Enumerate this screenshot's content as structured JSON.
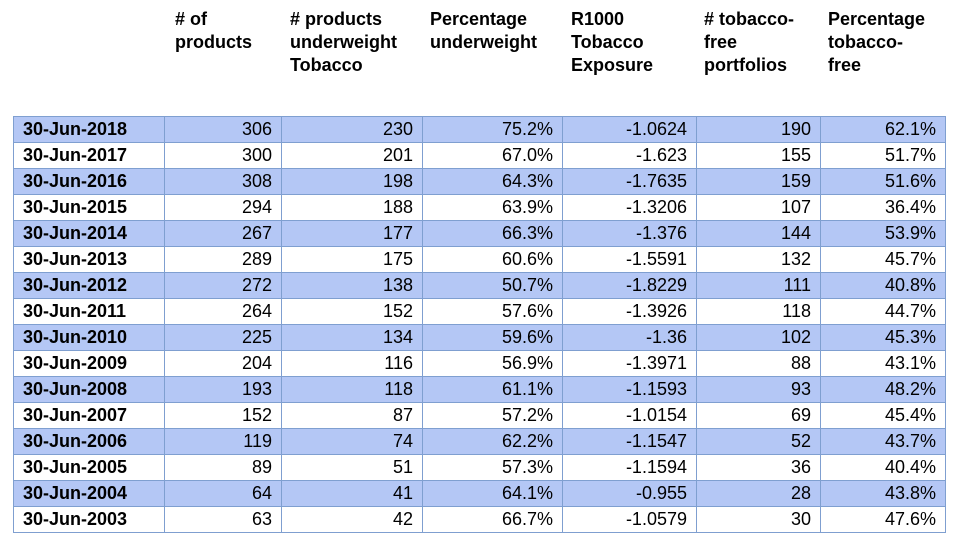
{
  "colors": {
    "shaded_row": "#b4c7f5",
    "border": "#7f9fd0"
  },
  "headers": [
    [
      "# of",
      "products"
    ],
    [
      "# products",
      "underweight",
      "Tobacco"
    ],
    [
      "Percentage",
      "underweight"
    ],
    [
      "R1000",
      "Tobacco",
      "Exposure"
    ],
    [
      "# tobacco-",
      "free",
      "portfolios"
    ],
    [
      "Percentage",
      "tobacco-",
      "free"
    ]
  ],
  "rows": [
    [
      "30-Jun-2018",
      "306",
      "230",
      "75.2%",
      "-1.0624",
      "190",
      "62.1%"
    ],
    [
      "30-Jun-2017",
      "300",
      "201",
      "67.0%",
      "-1.623",
      "155",
      "51.7%"
    ],
    [
      "30-Jun-2016",
      "308",
      "198",
      "64.3%",
      "-1.7635",
      "159",
      "51.6%"
    ],
    [
      "30-Jun-2015",
      "294",
      "188",
      "63.9%",
      "-1.3206",
      "107",
      "36.4%"
    ],
    [
      "30-Jun-2014",
      "267",
      "177",
      "66.3%",
      "-1.376",
      "144",
      "53.9%"
    ],
    [
      "30-Jun-2013",
      "289",
      "175",
      "60.6%",
      "-1.5591",
      "132",
      "45.7%"
    ],
    [
      "30-Jun-2012",
      "272",
      "138",
      "50.7%",
      "-1.8229",
      "111",
      "40.8%"
    ],
    [
      "30-Jun-2011",
      "264",
      "152",
      "57.6%",
      "-1.3926",
      "118",
      "44.7%"
    ],
    [
      "30-Jun-2010",
      "225",
      "134",
      "59.6%",
      "-1.36",
      "102",
      "45.3%"
    ],
    [
      "30-Jun-2009",
      "204",
      "116",
      "56.9%",
      "-1.3971",
      "88",
      "43.1%"
    ],
    [
      "30-Jun-2008",
      "193",
      "118",
      "61.1%",
      "-1.1593",
      "93",
      "48.2%"
    ],
    [
      "30-Jun-2007",
      "152",
      "87",
      "57.2%",
      "-1.0154",
      "69",
      "45.4%"
    ],
    [
      "30-Jun-2006",
      "119",
      "74",
      "62.2%",
      "-1.1547",
      "52",
      "43.7%"
    ],
    [
      "30-Jun-2005",
      "89",
      "51",
      "57.3%",
      "-1.1594",
      "36",
      "40.4%"
    ],
    [
      "30-Jun-2004",
      "64",
      "41",
      "64.1%",
      "-0.955",
      "28",
      "43.8%"
    ],
    [
      "30-Jun-2003",
      "63",
      "42",
      "66.7%",
      "-1.0579",
      "30",
      "47.6%"
    ]
  ]
}
